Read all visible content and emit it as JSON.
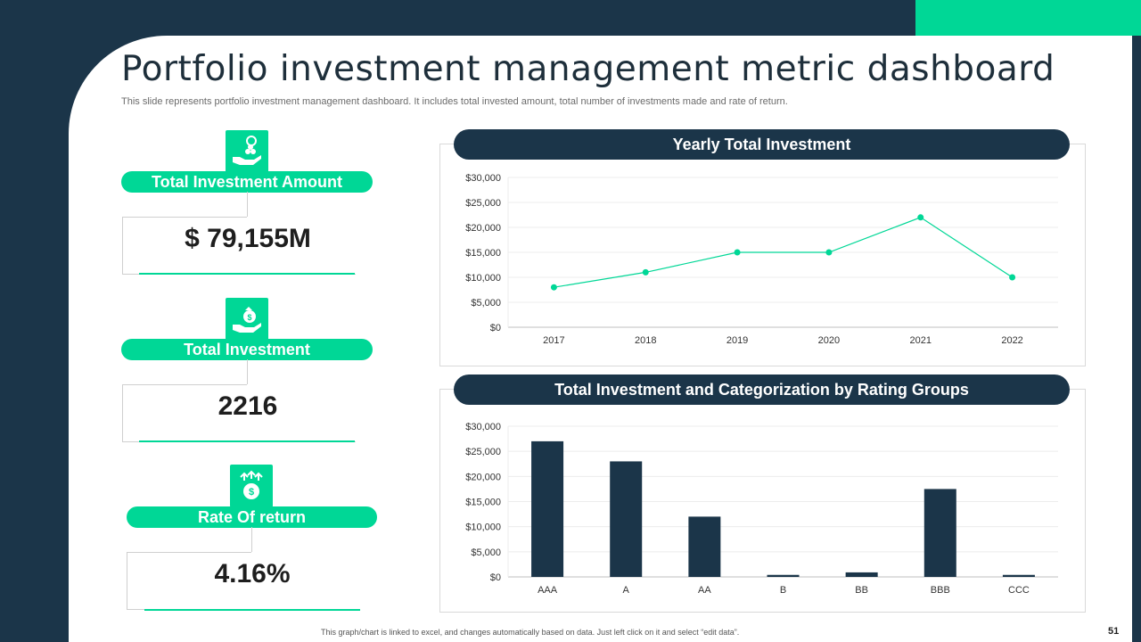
{
  "slide": {
    "title": "Portfolio investment management metric dashboard",
    "subtitle": "This slide represents portfolio investment management dashboard. It includes total invested amount, total number of investments made and rate of return.",
    "footer_note": "This graph/chart is linked to excel, and changes automatically based on data. Just left click on it and select “edit data”.",
    "page_number": "51",
    "colors": {
      "navy": "#1b3549",
      "green": "#00d796",
      "white": "#ffffff"
    }
  },
  "kpis": [
    {
      "label": "Total Investment Amount",
      "value": "$ 79,155M",
      "icon": "money-hand-icon"
    },
    {
      "label": "Total Investment",
      "value": "2216",
      "icon": "money-bag-hand-icon"
    },
    {
      "label": "Rate Of return",
      "value": "4.16%",
      "icon": "dollar-growth-icon"
    }
  ],
  "chart_data": [
    {
      "type": "line",
      "title": "Yearly Total Investment",
      "categories": [
        "2017",
        "2018",
        "2019",
        "2020",
        "2021",
        "2022"
      ],
      "values": [
        8000,
        11000,
        15000,
        15000,
        22000,
        10000
      ],
      "ylim": [
        0,
        30000
      ],
      "yticks": [
        "$0",
        "$5,000",
        "$10,000",
        "$15,000",
        "$20,000",
        "$25,000",
        "$30,000"
      ],
      "grid": true,
      "color": "#00d796"
    },
    {
      "type": "bar",
      "title": "Total Investment and Categorization by Rating Groups",
      "categories": [
        "AAA",
        "A",
        "AA",
        "B",
        "BB",
        "BBB",
        "CCC"
      ],
      "values": [
        27000,
        23000,
        12000,
        400,
        900,
        17500,
        400
      ],
      "ylim": [
        0,
        30000
      ],
      "yticks": [
        "$0",
        "$5,000",
        "$10,000",
        "$15,000",
        "$20,000",
        "$25,000",
        "$30,000"
      ],
      "grid": true,
      "color": "#1b3549"
    }
  ]
}
